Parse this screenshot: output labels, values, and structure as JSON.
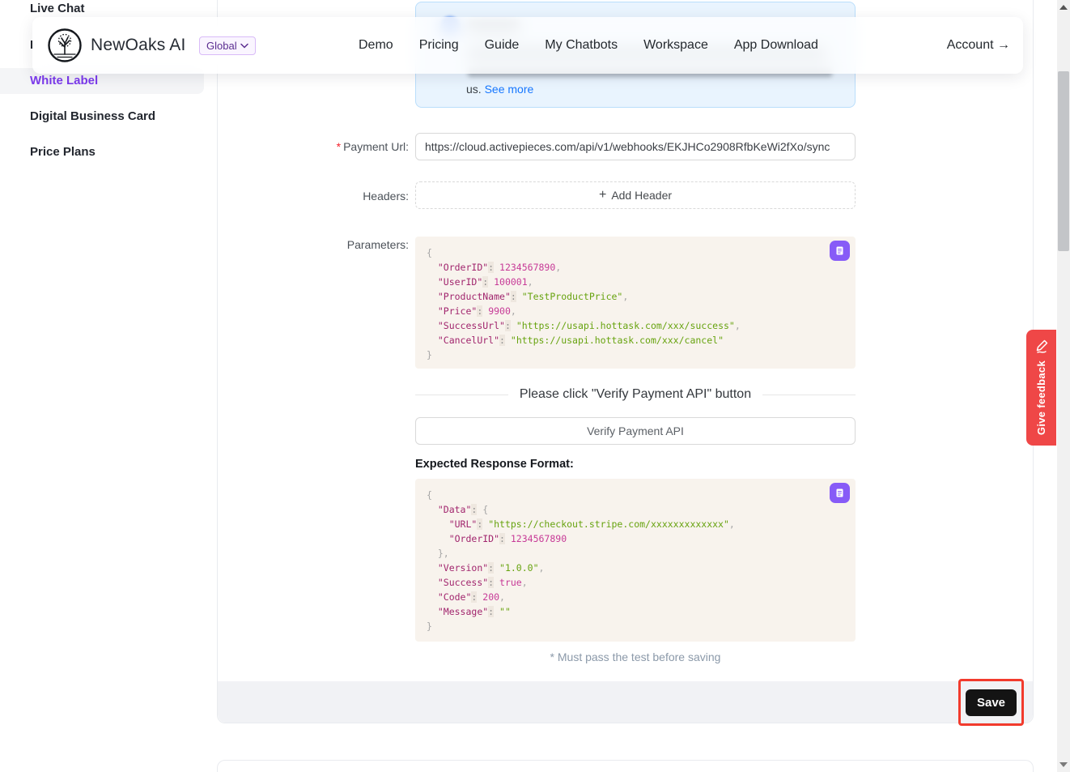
{
  "brand": {
    "name": "NewOaks AI",
    "badge": "Global"
  },
  "nav": {
    "links": [
      "Demo",
      "Pricing",
      "Guide",
      "My Chatbots",
      "Workspace",
      "App Download"
    ],
    "account_label": "Account",
    "account_arrow": "→"
  },
  "sidebar": {
    "items": [
      {
        "label": "Live Chat"
      },
      {
        "label": "I"
      },
      {
        "label": "White Label"
      },
      {
        "label": "Digital Business Card"
      },
      {
        "label": "Price Plans"
      }
    ]
  },
  "reminder": {
    "tail_text": "us.",
    "link": "See more"
  },
  "form": {
    "required_mark": "*",
    "payment_url": {
      "label": "Payment Url:",
      "value": "https://cloud.activepieces.com/api/v1/webhooks/EKJHCo2908RfbKeWi2fXo/sync"
    },
    "headers": {
      "label": "Headers:",
      "plus": "+",
      "add_button": "Add Header"
    },
    "parameters_label": "Parameters:",
    "divider_text": "Please click \"Verify Payment API\" button",
    "verify_button": "Verify Payment API",
    "response_heading": "Expected Response Format:",
    "note": "* Must pass the test before saving",
    "save_button": "Save"
  },
  "code_blocks": {
    "parameters": {
      "lines": [
        [
          [
            "p",
            "{"
          ]
        ],
        [
          [
            "p",
            "  "
          ],
          [
            "k",
            "\"OrderID\""
          ],
          [
            "c",
            ":"
          ],
          [
            "n",
            " 1234567890"
          ],
          [
            "p",
            ","
          ]
        ],
        [
          [
            "p",
            "  "
          ],
          [
            "k",
            "\"UserID\""
          ],
          [
            "c",
            ":"
          ],
          [
            "n",
            " 100001"
          ],
          [
            "p",
            ","
          ]
        ],
        [
          [
            "p",
            "  "
          ],
          [
            "k",
            "\"ProductName\""
          ],
          [
            "c",
            ":"
          ],
          [
            "s",
            " \"TestProductPrice\""
          ],
          [
            "p",
            ","
          ]
        ],
        [
          [
            "p",
            "  "
          ],
          [
            "k",
            "\"Price\""
          ],
          [
            "c",
            ":"
          ],
          [
            "n",
            " 9900"
          ],
          [
            "p",
            ","
          ]
        ],
        [
          [
            "p",
            "  "
          ],
          [
            "k",
            "\"SuccessUrl\""
          ],
          [
            "c",
            ":"
          ],
          [
            "s",
            " \"https://usapi.hottask.com/xxx/success\""
          ],
          [
            "p",
            ","
          ]
        ],
        [
          [
            "p",
            "  "
          ],
          [
            "k",
            "\"CancelUrl\""
          ],
          [
            "c",
            ":"
          ],
          [
            "s",
            " \"https://usapi.hottask.com/xxx/cancel\""
          ]
        ],
        [
          [
            "p",
            "}"
          ]
        ]
      ]
    },
    "response": {
      "lines": [
        [
          [
            "p",
            "{"
          ]
        ],
        [
          [
            "p",
            "  "
          ],
          [
            "k",
            "\"Data\""
          ],
          [
            "c",
            ":"
          ],
          [
            "p",
            " {"
          ]
        ],
        [
          [
            "p",
            "    "
          ],
          [
            "k",
            "\"URL\""
          ],
          [
            "c",
            ":"
          ],
          [
            "s",
            " \"https://checkout.stripe.com/xxxxxxxxxxxxx\""
          ],
          [
            "p",
            ","
          ]
        ],
        [
          [
            "p",
            "    "
          ],
          [
            "k",
            "\"OrderID\""
          ],
          [
            "c",
            ":"
          ],
          [
            "n",
            " 1234567890"
          ]
        ],
        [
          [
            "p",
            "  "
          ],
          [
            "p",
            "},"
          ]
        ],
        [
          [
            "p",
            "  "
          ],
          [
            "k",
            "\"Version\""
          ],
          [
            "c",
            ":"
          ],
          [
            "s",
            " \"1.0.0\""
          ],
          [
            "p",
            ","
          ]
        ],
        [
          [
            "p",
            "  "
          ],
          [
            "k",
            "\"Success\""
          ],
          [
            "c",
            ":"
          ],
          [
            "n",
            " true"
          ],
          [
            "p",
            ","
          ]
        ],
        [
          [
            "p",
            "  "
          ],
          [
            "k",
            "\"Code\""
          ],
          [
            "c",
            ":"
          ],
          [
            "n",
            " 200"
          ],
          [
            "p",
            ","
          ]
        ],
        [
          [
            "p",
            "  "
          ],
          [
            "k",
            "\"Message\""
          ],
          [
            "c",
            ":"
          ],
          [
            "s",
            " \"\""
          ]
        ],
        [
          [
            "p",
            "}"
          ]
        ]
      ]
    }
  },
  "feedback_tab": {
    "label": "Give feedback"
  },
  "colors": {
    "accent_purple": "#7c3aed",
    "copy_button": "#875bf7",
    "feedback_red": "#ef4747",
    "annotation_red": "#f23b2d",
    "link_blue": "#1677ff",
    "code_key": "#a1256d",
    "code_string": "#67a30f",
    "code_number": "#c73a97",
    "code_punct": "#a6a6a6"
  }
}
